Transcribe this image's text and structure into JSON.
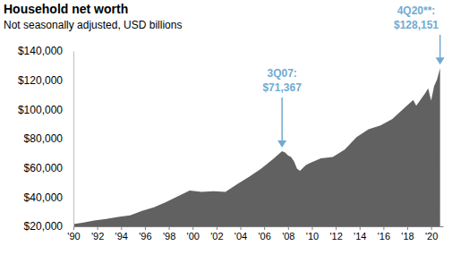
{
  "chart_data": {
    "type": "area",
    "title": "Household net worth",
    "subtitle": "Not seasonally adjusted, USD billions",
    "color": "#616161",
    "x": [
      1990,
      1990.75,
      1991.75,
      1992.75,
      1993.75,
      1994.75,
      1995.75,
      1996.75,
      1997.75,
      1998.75,
      1999.75,
      2000.75,
      2001.75,
      2002.75,
      2003.75,
      2004.75,
      2005.75,
      2006.75,
      2007.5,
      2007.75,
      2008,
      2008.25,
      2008.5,
      2008.75,
      2009,
      2009.25,
      2009.5,
      2009.75,
      2010.75,
      2011.75,
      2012.75,
      2013.75,
      2014.75,
      2015.75,
      2016.75,
      2017.75,
      2018.5,
      2018.75,
      2019.5,
      2019.75,
      2020,
      2020.25,
      2020.5,
      2020.75
    ],
    "values": [
      21500,
      22500,
      24000,
      25000,
      26500,
      27500,
      30500,
      33000,
      36500,
      40500,
      44500,
      43500,
      44000,
      43500,
      49000,
      54000,
      59500,
      66000,
      71367,
      70500,
      68500,
      67500,
      64500,
      59500,
      58000,
      60000,
      62000,
      63000,
      66500,
      67500,
      72500,
      81000,
      86500,
      89000,
      93500,
      101000,
      106500,
      102500,
      111000,
      114500,
      106000,
      116000,
      120500,
      128151
    ],
    "xlim": [
      1990,
      2021
    ],
    "xticks": [
      {
        "value": 1990,
        "label": "'90"
      },
      {
        "value": 1992,
        "label": "'92"
      },
      {
        "value": 1994,
        "label": "'94"
      },
      {
        "value": 1996,
        "label": "'96"
      },
      {
        "value": 1998,
        "label": "'98"
      },
      {
        "value": 2000,
        "label": "'00"
      },
      {
        "value": 2002,
        "label": "'02"
      },
      {
        "value": 2004,
        "label": "'04"
      },
      {
        "value": 2006,
        "label": "'06"
      },
      {
        "value": 2008,
        "label": "'08"
      },
      {
        "value": 2010,
        "label": "'10"
      },
      {
        "value": 2012,
        "label": "'12"
      },
      {
        "value": 2014,
        "label": "'14"
      },
      {
        "value": 2016,
        "label": "'16"
      },
      {
        "value": 2018,
        "label": "'18"
      },
      {
        "value": 2020,
        "label": "'20"
      }
    ],
    "ylim": [
      20000,
      140000
    ],
    "yticks": [
      {
        "value": 20000,
        "label": "$20,000"
      },
      {
        "value": 40000,
        "label": "$40,000"
      },
      {
        "value": 60000,
        "label": "$60,000"
      },
      {
        "value": 80000,
        "label": "$80,000"
      },
      {
        "value": 100000,
        "label": "$100,000"
      },
      {
        "value": 120000,
        "label": "$120,000"
      },
      {
        "value": 140000,
        "label": "$140,000"
      }
    ],
    "grid": false,
    "annotations": [
      {
        "x": 2007.5,
        "y": 71367,
        "lines": [
          "3Q07:",
          "$71,367"
        ],
        "color": "#72aad0"
      },
      {
        "x": 2020.75,
        "y": 128151,
        "lines": [
          "4Q20**:",
          "$128,151"
        ],
        "color": "#72aad0"
      }
    ]
  }
}
